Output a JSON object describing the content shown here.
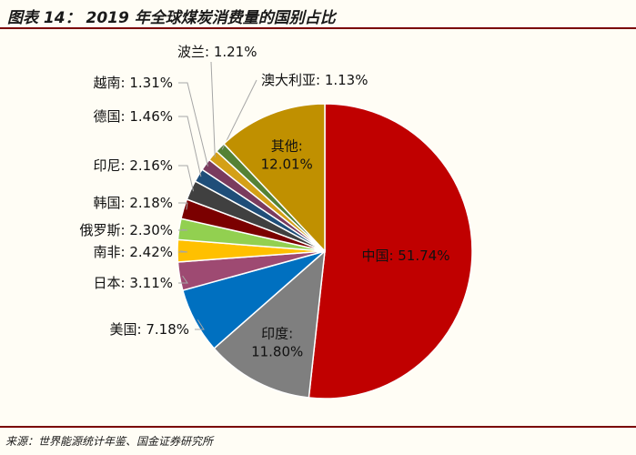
{
  "title": "图表 14：  2019 年全球煤炭消费量的国别占比",
  "source": "来源：世界能源统计年鉴、国金证券研究所",
  "chart_data": {
    "type": "pie",
    "title": "2019 年全球煤炭消费量的国别占比",
    "unit": "%",
    "slices": [
      {
        "name": "中国",
        "value": 51.74,
        "label": "中国: 51.74%",
        "color": "#c00000"
      },
      {
        "name": "印度",
        "value": 11.8,
        "label_name": "印度:",
        "label_value": "11.80%",
        "color": "#7f7f7f"
      },
      {
        "name": "美国",
        "value": 7.18,
        "label": "美国: 7.18%",
        "color": "#0070c0"
      },
      {
        "name": "日本",
        "value": 3.11,
        "label": "日本: 3.11%",
        "color": "#9e4a72"
      },
      {
        "name": "南非",
        "value": 2.42,
        "label": "南非: 2.42%",
        "color": "#ffc000"
      },
      {
        "name": "俄罗斯",
        "value": 2.3,
        "label": "俄罗斯: 2.30%",
        "color": "#92d050"
      },
      {
        "name": "韩国",
        "value": 2.18,
        "label": "韩国: 2.18%",
        "color": "#7b0000"
      },
      {
        "name": "印尼",
        "value": 2.16,
        "label": "印尼: 2.16%",
        "color": "#404040"
      },
      {
        "name": "德国",
        "value": 1.46,
        "label": "德国: 1.46%",
        "color": "#1f4e79"
      },
      {
        "name": "越南",
        "value": 1.31,
        "label": "越南: 1.31%",
        "color": "#7a3b5e"
      },
      {
        "name": "波兰",
        "value": 1.21,
        "label": "波兰: 1.21%",
        "color": "#d4a017"
      },
      {
        "name": "澳大利亚",
        "value": 1.13,
        "label": "澳大利亚: 1.13%",
        "color": "#548235"
      },
      {
        "name": "其他",
        "value": 12.01,
        "label_name": "其他:",
        "label_value": "12.01%",
        "color": "#c09000"
      }
    ]
  }
}
